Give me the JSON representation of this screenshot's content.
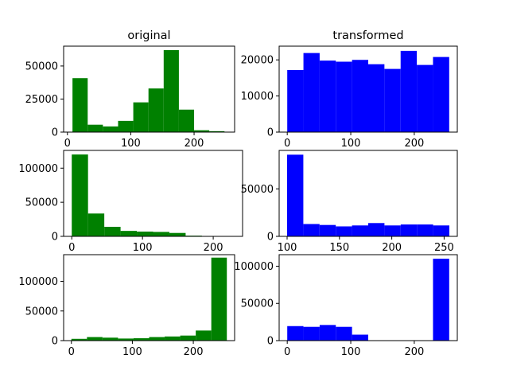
{
  "chart_data": [
    {
      "type": "bar",
      "title": "original",
      "color": "#008000",
      "xlim": [
        -6,
        264
      ],
      "ylim": [
        0,
        65000
      ],
      "xticks": [
        0,
        100,
        200
      ],
      "yticks": [
        0,
        25000,
        50000
      ],
      "bins": [
        [
          8,
          32
        ],
        [
          32,
          56
        ],
        [
          56,
          80
        ],
        [
          80,
          104
        ],
        [
          104,
          128
        ],
        [
          128,
          152
        ],
        [
          152,
          176
        ],
        [
          176,
          200
        ],
        [
          200,
          224
        ],
        [
          224,
          248
        ]
      ],
      "values": [
        40800,
        5600,
        4300,
        8500,
        22500,
        33000,
        62000,
        17000,
        1400,
        700
      ]
    },
    {
      "type": "bar",
      "title": "transformed",
      "color": "#0000ff",
      "xlim": [
        -12.75,
        267.75
      ],
      "ylim": [
        0,
        23800
      ],
      "xticks": [
        0,
        100,
        200
      ],
      "yticks": [
        0,
        10000,
        20000
      ],
      "bins": [
        [
          0,
          25.5
        ],
        [
          25.5,
          51
        ],
        [
          51,
          76.5
        ],
        [
          76.5,
          102
        ],
        [
          102,
          127.5
        ],
        [
          127.5,
          153
        ],
        [
          153,
          178.5
        ],
        [
          178.5,
          204
        ],
        [
          204,
          229.5
        ],
        [
          229.5,
          255
        ]
      ],
      "values": [
        17200,
        21900,
        19800,
        19500,
        20000,
        18800,
        17500,
        22500,
        18600,
        20800
      ]
    },
    {
      "type": "bar",
      "title": "",
      "color": "#008000",
      "xlim": [
        -11.5,
        241.5
      ],
      "ylim": [
        0,
        126000
      ],
      "xticks": [
        0,
        100,
        200
      ],
      "yticks": [
        0,
        50000,
        100000
      ],
      "bins": [
        [
          0,
          23
        ],
        [
          23,
          46
        ],
        [
          46,
          69
        ],
        [
          69,
          92
        ],
        [
          92,
          115
        ],
        [
          115,
          138
        ],
        [
          138,
          161
        ],
        [
          161,
          184
        ],
        [
          184,
          207
        ],
        [
          207,
          230
        ]
      ],
      "values": [
        120000,
        33500,
        14000,
        8000,
        7000,
        6500,
        5000,
        1000,
        500,
        300
      ]
    },
    {
      "type": "bar",
      "title": "",
      "color": "#0000ff",
      "xlim": [
        92.4,
        262.6
      ],
      "ylim": [
        0,
        90500
      ],
      "xticks": [
        100,
        150,
        200,
        250
      ],
      "yticks": [
        0,
        50000
      ],
      "bins": [
        [
          100,
          115.5
        ],
        [
          115.5,
          131
        ],
        [
          131,
          146.5
        ],
        [
          146.5,
          162
        ],
        [
          162,
          177.5
        ],
        [
          177.5,
          193
        ],
        [
          193,
          208.5
        ],
        [
          208.5,
          224
        ],
        [
          224,
          239.5
        ],
        [
          239.5,
          255
        ]
      ],
      "values": [
        86000,
        13000,
        12000,
        10500,
        11500,
        14000,
        11500,
        12500,
        12500,
        11500
      ]
    },
    {
      "type": "bar",
      "title": "",
      "color": "#008000",
      "xlim": [
        -12.75,
        267.75
      ],
      "ylim": [
        0,
        145000
      ],
      "xticks": [
        0,
        100,
        200
      ],
      "yticks": [
        0,
        50000,
        100000
      ],
      "bins": [
        [
          0,
          25.5
        ],
        [
          25.5,
          51
        ],
        [
          51,
          76.5
        ],
        [
          76.5,
          102
        ],
        [
          102,
          127.5
        ],
        [
          127.5,
          153
        ],
        [
          153,
          178.5
        ],
        [
          178.5,
          204
        ],
        [
          204,
          229.5
        ],
        [
          229.5,
          255
        ]
      ],
      "values": [
        3000,
        6000,
        5000,
        3500,
        4000,
        6000,
        7000,
        8500,
        17000,
        140000
      ]
    },
    {
      "type": "bar",
      "title": "",
      "color": "#0000ff",
      "xlim": [
        -12.75,
        267.75
      ],
      "ylim": [
        0,
        115500
      ],
      "xticks": [
        0,
        100,
        200
      ],
      "yticks": [
        0,
        50000,
        100000
      ],
      "bins": [
        [
          0,
          25.5
        ],
        [
          25.5,
          51
        ],
        [
          51,
          76.5
        ],
        [
          76.5,
          102
        ],
        [
          102,
          127.5
        ],
        [
          127.5,
          153
        ],
        [
          153,
          178.5
        ],
        [
          178.5,
          204
        ],
        [
          204,
          229.5
        ],
        [
          229.5,
          255
        ]
      ],
      "values": [
        19500,
        18500,
        21000,
        18500,
        8000,
        0,
        0,
        0,
        0,
        110000
      ]
    }
  ]
}
